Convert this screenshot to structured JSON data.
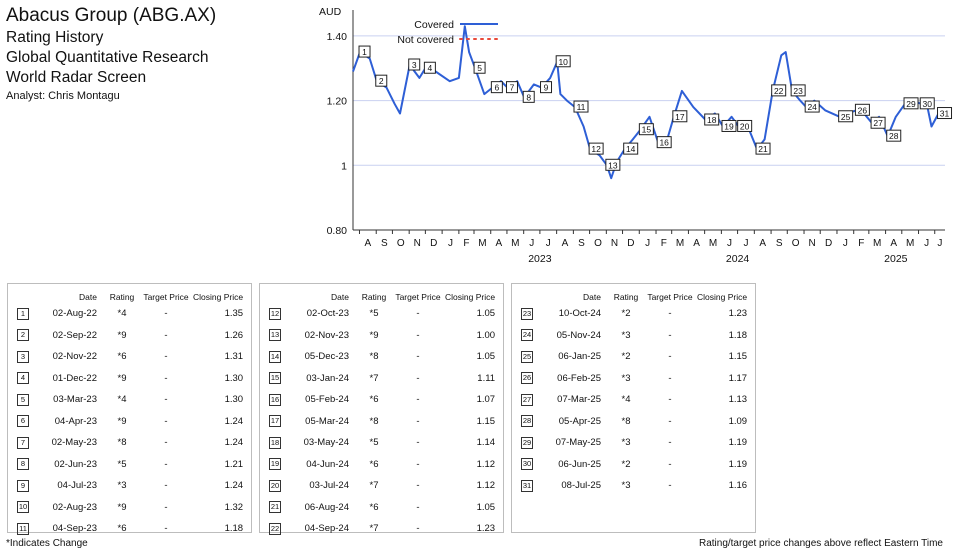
{
  "header": {
    "title": "Abacus Group (ABG.AX)",
    "lines": [
      "Rating History",
      "Global Quantitative Research",
      "World Radar Screen"
    ],
    "analyst": "Analyst: Chris Montagu"
  },
  "chart_data": {
    "type": "line",
    "ylabel": "AUD",
    "ylim": [
      0.8,
      1.48
    ],
    "yticks": [
      0.8,
      1,
      1.2,
      1.4
    ],
    "ytick_labels": [
      "0.80",
      "1",
      "1.20",
      "1.40"
    ],
    "x_range": [
      "2022-07-20",
      "2025-07-20"
    ],
    "month_labels": [
      "A",
      "S",
      "O",
      "N",
      "D",
      "J",
      "F",
      "M",
      "A",
      "M",
      "J",
      "J",
      "A",
      "S",
      "O",
      "N",
      "D",
      "J",
      "F",
      "M",
      "A",
      "M",
      "J",
      "J",
      "A",
      "S",
      "O",
      "N",
      "D",
      "J",
      "F",
      "M",
      "A",
      "M",
      "J",
      "J"
    ],
    "year_labels": [
      "2023",
      "2024",
      "2025"
    ],
    "legend": [
      {
        "label": "Covered",
        "color": "#2e5fd6",
        "style": "solid"
      },
      {
        "label": "Not covered",
        "color": "#e8483a",
        "style": "dotted"
      }
    ],
    "legend_position": "top-center",
    "grid": true,
    "series": [
      {
        "name": "Covered",
        "color": "#2e5fd6",
        "points": [
          [
            "2022-07-20",
            1.29
          ],
          [
            "2022-08-02",
            1.35
          ],
          [
            "2022-08-20",
            1.33
          ],
          [
            "2022-09-02",
            1.26
          ],
          [
            "2022-09-20",
            1.24
          ],
          [
            "2022-10-05",
            1.19
          ],
          [
            "2022-10-15",
            1.16
          ],
          [
            "2022-11-02",
            1.31
          ],
          [
            "2022-11-20",
            1.27
          ],
          [
            "2022-12-01",
            1.3
          ],
          [
            "2022-12-20",
            1.29
          ],
          [
            "2023-01-15",
            1.26
          ],
          [
            "2023-02-01",
            1.27
          ],
          [
            "2023-02-12",
            1.43
          ],
          [
            "2023-02-20",
            1.35
          ],
          [
            "2023-03-03",
            1.3
          ],
          [
            "2023-03-20",
            1.22
          ],
          [
            "2023-04-04",
            1.24
          ],
          [
            "2023-04-20",
            1.26
          ],
          [
            "2023-05-02",
            1.24
          ],
          [
            "2023-05-20",
            1.26
          ],
          [
            "2023-06-02",
            1.21
          ],
          [
            "2023-06-20",
            1.25
          ],
          [
            "2023-07-04",
            1.24
          ],
          [
            "2023-07-20",
            1.27
          ],
          [
            "2023-08-02",
            1.32
          ],
          [
            "2023-08-08",
            1.22
          ],
          [
            "2023-08-20",
            1.2
          ],
          [
            "2023-09-04",
            1.18
          ],
          [
            "2023-09-20",
            1.12
          ],
          [
            "2023-10-02",
            1.05
          ],
          [
            "2023-10-20",
            1.03
          ],
          [
            "2023-11-02",
            1.0
          ],
          [
            "2023-11-10",
            0.96
          ],
          [
            "2023-11-20",
            1.01
          ],
          [
            "2023-12-05",
            1.05
          ],
          [
            "2023-12-20",
            1.08
          ],
          [
            "2024-01-03",
            1.11
          ],
          [
            "2024-01-20",
            1.15
          ],
          [
            "2024-02-05",
            1.07
          ],
          [
            "2024-02-20",
            1.07
          ],
          [
            "2024-03-05",
            1.15
          ],
          [
            "2024-03-20",
            1.23
          ],
          [
            "2024-04-10",
            1.18
          ],
          [
            "2024-05-03",
            1.14
          ],
          [
            "2024-05-20",
            1.16
          ],
          [
            "2024-06-04",
            1.12
          ],
          [
            "2024-06-20",
            1.15
          ],
          [
            "2024-07-03",
            1.12
          ],
          [
            "2024-07-20",
            1.12
          ],
          [
            "2024-08-06",
            1.05
          ],
          [
            "2024-08-20",
            1.08
          ],
          [
            "2024-09-04",
            1.23
          ],
          [
            "2024-09-20",
            1.34
          ],
          [
            "2024-09-28",
            1.35
          ],
          [
            "2024-10-10",
            1.23
          ],
          [
            "2024-10-25",
            1.2
          ],
          [
            "2024-11-05",
            1.18
          ],
          [
            "2024-11-20",
            1.2
          ],
          [
            "2024-12-10",
            1.17
          ],
          [
            "2025-01-06",
            1.15
          ],
          [
            "2025-01-20",
            1.16
          ],
          [
            "2025-02-06",
            1.17
          ],
          [
            "2025-02-20",
            1.16
          ],
          [
            "2025-03-07",
            1.13
          ],
          [
            "2025-03-20",
            1.15
          ],
          [
            "2025-04-05",
            1.09
          ],
          [
            "2025-04-20",
            1.15
          ],
          [
            "2025-05-07",
            1.19
          ],
          [
            "2025-05-20",
            1.2
          ],
          [
            "2025-06-06",
            1.19
          ],
          [
            "2025-06-15",
            1.2
          ],
          [
            "2025-06-25",
            1.12
          ],
          [
            "2025-07-08",
            1.16
          ],
          [
            "2025-07-18",
            1.16
          ]
        ]
      },
      {
        "name": "Not covered",
        "color": "#e8483a",
        "points": []
      }
    ],
    "markers": [
      {
        "n": "1",
        "date": "2022-08-02",
        "value": 1.35
      },
      {
        "n": "2",
        "date": "2022-09-02",
        "value": 1.26
      },
      {
        "n": "3",
        "date": "2022-11-02",
        "value": 1.31
      },
      {
        "n": "4",
        "date": "2022-12-01",
        "value": 1.3
      },
      {
        "n": "5",
        "date": "2023-03-03",
        "value": 1.3
      },
      {
        "n": "6",
        "date": "2023-04-04",
        "value": 1.24
      },
      {
        "n": "7",
        "date": "2023-05-02",
        "value": 1.24
      },
      {
        "n": "8",
        "date": "2023-06-02",
        "value": 1.21
      },
      {
        "n": "9",
        "date": "2023-07-04",
        "value": 1.24
      },
      {
        "n": "10",
        "date": "2023-08-02",
        "value": 1.32
      },
      {
        "n": "11",
        "date": "2023-09-04",
        "value": 1.18
      },
      {
        "n": "12",
        "date": "2023-10-02",
        "value": 1.05
      },
      {
        "n": "13",
        "date": "2023-11-02",
        "value": 1.0
      },
      {
        "n": "14",
        "date": "2023-12-05",
        "value": 1.05
      },
      {
        "n": "15",
        "date": "2024-01-03",
        "value": 1.11
      },
      {
        "n": "16",
        "date": "2024-02-05",
        "value": 1.07
      },
      {
        "n": "17",
        "date": "2024-03-05",
        "value": 1.15
      },
      {
        "n": "18",
        "date": "2024-05-03",
        "value": 1.14
      },
      {
        "n": "19",
        "date": "2024-06-04",
        "value": 1.12
      },
      {
        "n": "20",
        "date": "2024-07-03",
        "value": 1.12
      },
      {
        "n": "21",
        "date": "2024-08-06",
        "value": 1.05
      },
      {
        "n": "22",
        "date": "2024-09-04",
        "value": 1.23
      },
      {
        "n": "23",
        "date": "2024-10-10",
        "value": 1.23
      },
      {
        "n": "24",
        "date": "2024-11-05",
        "value": 1.18
      },
      {
        "n": "25",
        "date": "2025-01-06",
        "value": 1.15
      },
      {
        "n": "26",
        "date": "2025-02-06",
        "value": 1.17
      },
      {
        "n": "27",
        "date": "2025-03-07",
        "value": 1.13
      },
      {
        "n": "28",
        "date": "2025-04-05",
        "value": 1.09
      },
      {
        "n": "29",
        "date": "2025-05-07",
        "value": 1.19
      },
      {
        "n": "30",
        "date": "2025-06-06",
        "value": 1.19
      },
      {
        "n": "31",
        "date": "2025-07-08",
        "value": 1.16
      }
    ]
  },
  "table": {
    "headers": {
      "date": "Date",
      "rating": "Rating",
      "target": "Target Price",
      "close": "Closing Price"
    },
    "rows": [
      {
        "n": "1",
        "date": "02-Aug-22",
        "rating": "*4",
        "target": "-",
        "close": "1.35"
      },
      {
        "n": "2",
        "date": "02-Sep-22",
        "rating": "*9",
        "target": "-",
        "close": "1.26"
      },
      {
        "n": "3",
        "date": "02-Nov-22",
        "rating": "*6",
        "target": "-",
        "close": "1.31"
      },
      {
        "n": "4",
        "date": "01-Dec-22",
        "rating": "*9",
        "target": "-",
        "close": "1.30"
      },
      {
        "n": "5",
        "date": "03-Mar-23",
        "rating": "*4",
        "target": "-",
        "close": "1.30"
      },
      {
        "n": "6",
        "date": "04-Apr-23",
        "rating": "*9",
        "target": "-",
        "close": "1.24"
      },
      {
        "n": "7",
        "date": "02-May-23",
        "rating": "*8",
        "target": "-",
        "close": "1.24"
      },
      {
        "n": "8",
        "date": "02-Jun-23",
        "rating": "*5",
        "target": "-",
        "close": "1.21"
      },
      {
        "n": "9",
        "date": "04-Jul-23",
        "rating": "*3",
        "target": "-",
        "close": "1.24"
      },
      {
        "n": "10",
        "date": "02-Aug-23",
        "rating": "*9",
        "target": "-",
        "close": "1.32"
      },
      {
        "n": "11",
        "date": "04-Sep-23",
        "rating": "*6",
        "target": "-",
        "close": "1.18"
      },
      {
        "n": "12",
        "date": "02-Oct-23",
        "rating": "*5",
        "target": "-",
        "close": "1.05"
      },
      {
        "n": "13",
        "date": "02-Nov-23",
        "rating": "*9",
        "target": "-",
        "close": "1.00"
      },
      {
        "n": "14",
        "date": "05-Dec-23",
        "rating": "*8",
        "target": "-",
        "close": "1.05"
      },
      {
        "n": "15",
        "date": "03-Jan-24",
        "rating": "*7",
        "target": "-",
        "close": "1.11"
      },
      {
        "n": "16",
        "date": "05-Feb-24",
        "rating": "*6",
        "target": "-",
        "close": "1.07"
      },
      {
        "n": "17",
        "date": "05-Mar-24",
        "rating": "*8",
        "target": "-",
        "close": "1.15"
      },
      {
        "n": "18",
        "date": "03-May-24",
        "rating": "*5",
        "target": "-",
        "close": "1.14"
      },
      {
        "n": "19",
        "date": "04-Jun-24",
        "rating": "*6",
        "target": "-",
        "close": "1.12"
      },
      {
        "n": "20",
        "date": "03-Jul-24",
        "rating": "*7",
        "target": "-",
        "close": "1.12"
      },
      {
        "n": "21",
        "date": "06-Aug-24",
        "rating": "*6",
        "target": "-",
        "close": "1.05"
      },
      {
        "n": "22",
        "date": "04-Sep-24",
        "rating": "*7",
        "target": "-",
        "close": "1.23"
      },
      {
        "n": "23",
        "date": "10-Oct-24",
        "rating": "*2",
        "target": "-",
        "close": "1.23"
      },
      {
        "n": "24",
        "date": "05-Nov-24",
        "rating": "*3",
        "target": "-",
        "close": "1.18"
      },
      {
        "n": "25",
        "date": "06-Jan-25",
        "rating": "*2",
        "target": "-",
        "close": "1.15"
      },
      {
        "n": "26",
        "date": "06-Feb-25",
        "rating": "*3",
        "target": "-",
        "close": "1.17"
      },
      {
        "n": "27",
        "date": "07-Mar-25",
        "rating": "*4",
        "target": "-",
        "close": "1.13"
      },
      {
        "n": "28",
        "date": "05-Apr-25",
        "rating": "*8",
        "target": "-",
        "close": "1.09"
      },
      {
        "n": "29",
        "date": "07-May-25",
        "rating": "*3",
        "target": "-",
        "close": "1.19"
      },
      {
        "n": "30",
        "date": "06-Jun-25",
        "rating": "*2",
        "target": "-",
        "close": "1.19"
      },
      {
        "n": "31",
        "date": "08-Jul-25",
        "rating": "*3",
        "target": "-",
        "close": "1.16"
      }
    ]
  },
  "footer": {
    "left": "*Indicates Change",
    "right": "Rating/target price changes above reflect Eastern Time"
  }
}
